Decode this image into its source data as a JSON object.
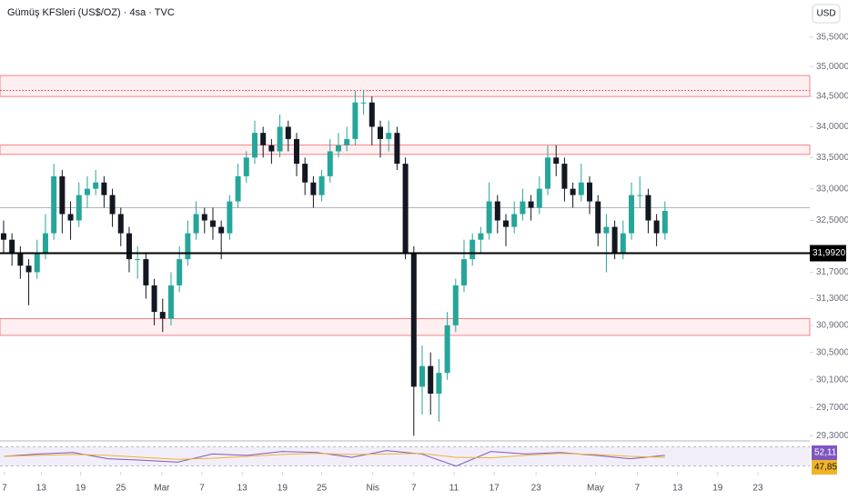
{
  "chart_data": {
    "type": "candlestick",
    "title": "Gümüş KFSleri (US$/OZ) · 4sa · TVC",
    "currency": "USD",
    "log_scale": true,
    "up_color": "#26a69a",
    "down_color": "#131722",
    "open": [
      32.3,
      32.2,
      32.0,
      31.8,
      31.7,
      32.0,
      32.3,
      33.2,
      32.6,
      32.5,
      32.9,
      33.0,
      33.1,
      32.9,
      32.6,
      32.3,
      31.9,
      31.9,
      31.5,
      31.1,
      31.0,
      31.5,
      31.9,
      32.3,
      32.6,
      32.5,
      32.4,
      32.3,
      32.8,
      33.2,
      33.5,
      33.9,
      33.7,
      33.6,
      34.0,
      33.8,
      33.4,
      33.1,
      32.9,
      33.2,
      33.6,
      33.7,
      33.8,
      34.4,
      34.4,
      34.0,
      33.8,
      33.9,
      33.4,
      32.0,
      30.0,
      30.3,
      29.9,
      30.2,
      30.9,
      31.5,
      31.9,
      32.2,
      32.3,
      32.8,
      32.5,
      32.4,
      32.6,
      32.8,
      32.7,
      33.0,
      33.5,
      33.4,
      33.0,
      32.9,
      33.1,
      32.8,
      32.3,
      32.4,
      32.0,
      32.3,
      32.9,
      32.9,
      32.5,
      32.3
    ],
    "high": [
      32.5,
      32.3,
      32.1,
      31.9,
      32.2,
      32.6,
      33.4,
      33.3,
      32.8,
      33.1,
      33.2,
      33.3,
      33.2,
      33.0,
      32.7,
      32.4,
      32.1,
      32.0,
      31.6,
      31.3,
      31.7,
      32.1,
      32.5,
      32.8,
      32.7,
      32.7,
      32.5,
      32.9,
      33.4,
      33.6,
      34.1,
      34.0,
      33.8,
      34.2,
      34.1,
      33.9,
      33.5,
      33.2,
      33.3,
      33.8,
      33.9,
      34.0,
      34.6,
      34.6,
      34.5,
      34.1,
      34.1,
      34.0,
      33.5,
      32.1,
      30.6,
      30.5,
      30.4,
      31.1,
      31.6,
      32.2,
      32.3,
      32.4,
      33.1,
      32.9,
      32.6,
      32.8,
      33.0,
      32.9,
      33.2,
      33.7,
      33.7,
      33.5,
      33.1,
      33.4,
      33.2,
      32.9,
      32.6,
      32.5,
      32.5,
      33.1,
      33.2,
      33.0,
      32.6,
      32.8
    ],
    "low": [
      32.0,
      31.8,
      31.6,
      31.2,
      31.6,
      31.9,
      32.2,
      32.3,
      32.2,
      32.4,
      32.7,
      32.9,
      32.7,
      32.4,
      32.1,
      31.7,
      31.6,
      31.3,
      30.9,
      30.8,
      30.9,
      31.4,
      31.8,
      32.2,
      32.3,
      32.2,
      31.9,
      32.2,
      32.7,
      33.1,
      33.4,
      33.5,
      33.4,
      33.5,
      33.6,
      33.2,
      32.9,
      32.7,
      32.8,
      33.1,
      33.5,
      33.6,
      33.7,
      34.2,
      33.7,
      33.5,
      33.6,
      33.3,
      31.9,
      29.3,
      29.6,
      29.6,
      29.5,
      30.1,
      30.8,
      31.4,
      31.8,
      32.0,
      32.2,
      32.3,
      32.1,
      32.3,
      32.5,
      32.5,
      32.6,
      32.9,
      33.2,
      32.8,
      32.7,
      32.8,
      32.6,
      32.1,
      31.7,
      31.9,
      31.9,
      32.2,
      32.7,
      32.3,
      32.1,
      32.2
    ],
    "close": [
      32.2,
      32.0,
      31.8,
      31.7,
      32.0,
      32.3,
      33.2,
      32.6,
      32.5,
      32.9,
      33.0,
      33.1,
      32.9,
      32.6,
      32.3,
      31.9,
      31.9,
      31.5,
      31.1,
      31.0,
      31.5,
      31.9,
      32.3,
      32.6,
      32.5,
      32.4,
      32.3,
      32.8,
      33.2,
      33.5,
      33.9,
      33.7,
      33.6,
      34.0,
      33.8,
      33.4,
      33.1,
      32.9,
      33.2,
      33.6,
      33.7,
      33.8,
      34.4,
      34.4,
      34.0,
      33.8,
      33.9,
      33.4,
      32.0,
      30.0,
      30.3,
      29.9,
      30.2,
      30.9,
      31.5,
      31.9,
      32.2,
      32.3,
      32.8,
      32.5,
      32.4,
      32.6,
      32.8,
      32.7,
      33.0,
      33.5,
      33.4,
      33.0,
      32.9,
      33.1,
      32.8,
      32.3,
      32.4,
      32.0,
      32.3,
      32.9,
      32.9,
      32.5,
      32.3,
      32.65
    ],
    "xlim": [
      -0.43,
      96.3
    ],
    "xticks": [
      {
        "value": 0.1,
        "label": "7"
      },
      {
        "value": 4.5,
        "label": "13"
      },
      {
        "value": 9.2,
        "label": "19"
      },
      {
        "value": 14,
        "label": "25"
      },
      {
        "value": 18.9,
        "label": "Mar"
      },
      {
        "value": 23.7,
        "label": "7"
      },
      {
        "value": 28.5,
        "label": "13"
      },
      {
        "value": 33.3,
        "label": "19"
      },
      {
        "value": 38,
        "label": "25"
      },
      {
        "value": 44.1,
        "label": "Nis"
      },
      {
        "value": 49,
        "label": "7"
      },
      {
        "value": 53.8,
        "label": "11"
      },
      {
        "value": 58.6,
        "label": "17"
      },
      {
        "value": 63.6,
        "label": "23"
      },
      {
        "value": 70.7,
        "label": "May"
      },
      {
        "value": 75.7,
        "label": "7"
      },
      {
        "value": 80.5,
        "label": "13"
      },
      {
        "value": 85.3,
        "label": "19"
      },
      {
        "value": 90.1,
        "label": "23"
      }
    ],
    "ylim": [
      29.24,
      36.14
    ],
    "yticks": [
      {
        "value": 35.5,
        "label": "35,5000"
      },
      {
        "value": 35,
        "label": "35,0000"
      },
      {
        "value": 34.5,
        "label": "34,5000"
      },
      {
        "value": 34,
        "label": "34,0000"
      },
      {
        "value": 33.5,
        "label": "33,5000"
      },
      {
        "value": 33,
        "label": "33,0000"
      },
      {
        "value": 32.5,
        "label": "32,5000"
      },
      {
        "value": 31.7,
        "label": "31,7000"
      },
      {
        "value": 31.3,
        "label": "31,3000"
      },
      {
        "value": 30.9,
        "label": "30,9000"
      },
      {
        "value": 30.5,
        "label": "30,5000"
      },
      {
        "value": 30.1,
        "label": "30,1000"
      },
      {
        "value": 29.7,
        "label": "29,7000"
      },
      {
        "value": 29.3,
        "label": "29,3000"
      }
    ],
    "zones": [
      [
        34.5,
        34.85
      ],
      [
        33.55,
        33.7
      ],
      [
        30.75,
        31.0
      ]
    ],
    "dotted_line": 34.6,
    "gray_line": 32.7,
    "price_line": {
      "value": 31.992,
      "label": "31,9920"
    },
    "rsi": {
      "ylim": [
        20,
        80
      ],
      "levels": [
        30,
        70
      ],
      "series": [
        {
          "color": "#7e57c2",
          "values": [
            50,
            55,
            58,
            45,
            42,
            38,
            55,
            52,
            60,
            58,
            48,
            62,
            55,
            30,
            60,
            55,
            58,
            52,
            45,
            52.11
          ],
          "last_label": "52,11"
        },
        {
          "color": "#f0b429",
          "values": [
            50,
            52,
            54,
            52,
            48,
            44,
            46,
            50,
            54,
            56,
            54,
            55,
            56,
            48,
            47,
            52,
            56,
            54,
            50,
            47.85
          ],
          "last_label": "47,85"
        }
      ]
    }
  }
}
